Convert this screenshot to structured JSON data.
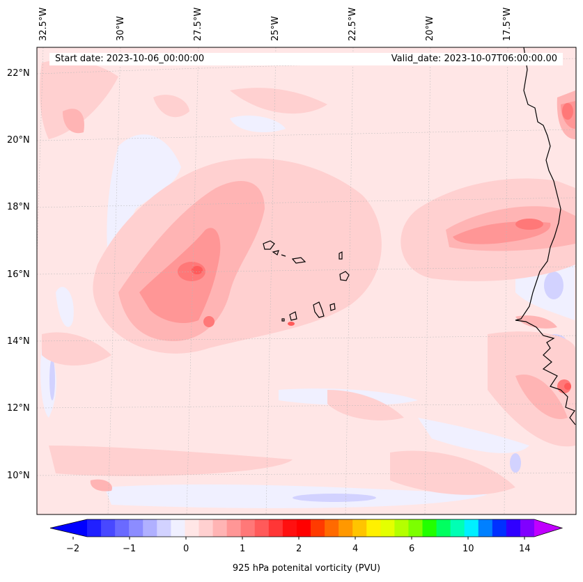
{
  "map": {
    "start_date": "Start date: 2023-10-06_00:00:00",
    "valid_date": "Valid_date: 2023-10-07T06:00:00.00",
    "lon_labels": [
      "32.5°W",
      "30°W",
      "27.5°W",
      "25°W",
      "22.5°W",
      "20°W",
      "17.5°W"
    ],
    "lat_labels": [
      "22°N",
      "20°N",
      "18°N",
      "16°N",
      "14°N",
      "12°N",
      "10°N"
    ]
  },
  "colorbar": {
    "title": "925 hPa potenital vorticity (PVU)",
    "tick_labels": [
      "−2",
      "−1",
      "0",
      "1",
      "2",
      "4",
      "6",
      "10",
      "14"
    ],
    "colors": [
      "#0000ff",
      "#2020ff",
      "#4848ff",
      "#6a6aff",
      "#8c8cff",
      "#b0b0ff",
      "#d2d2ff",
      "#f0f0ff",
      "#ffe6e6",
      "#ffd0d0",
      "#ffb4b4",
      "#ff9696",
      "#ff7878",
      "#ff5a5a",
      "#ff3636",
      "#ff1010",
      "#ff0000",
      "#ff3a00",
      "#ff6a00",
      "#ff9800",
      "#ffc400",
      "#fff000",
      "#e4ff00",
      "#b4ff00",
      "#7cff00",
      "#22ff00",
      "#00ff60",
      "#00ffb4",
      "#00f0ff",
      "#0080ff",
      "#0030ff",
      "#3000ff",
      "#8000ff",
      "#c000ff"
    ]
  }
}
